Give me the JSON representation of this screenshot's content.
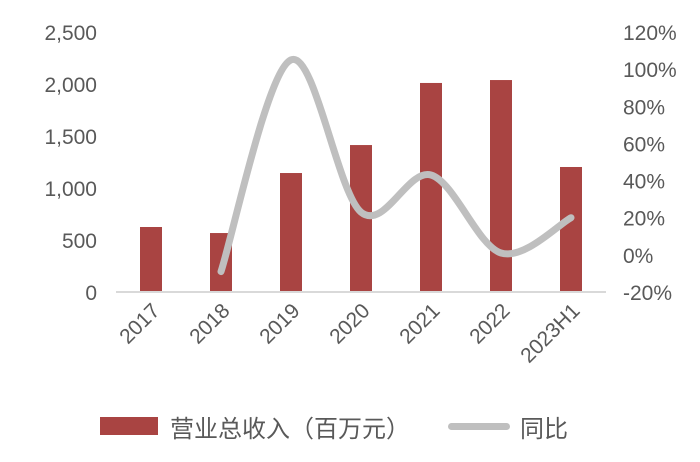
{
  "chart_data": {
    "type": "bar+line",
    "title": "",
    "categories": [
      "2017",
      "2018",
      "2019",
      "2020",
      "2021",
      "2022",
      "2023H1"
    ],
    "series": [
      {
        "name": "营业总收入（百万元）",
        "type": "bar",
        "axis": "left",
        "color": "#a94442",
        "values": [
          625,
          567,
          1144,
          1413,
          2010,
          2038,
          1202
        ]
      },
      {
        "name": "同比",
        "type": "line",
        "axis": "right",
        "color": "#bfbfbf",
        "smooth": true,
        "values": [
          null,
          -9,
          105,
          23,
          43,
          1,
          20
        ]
      }
    ],
    "left_axis": {
      "ylim": [
        0,
        2500
      ],
      "ticks": [
        "0",
        "500",
        "1,000",
        "1,500",
        "2,000",
        "2,500"
      ]
    },
    "right_axis": {
      "ylim": [
        -20,
        120
      ],
      "ticks": [
        "-20%",
        "0%",
        "20%",
        "40%",
        "60%",
        "80%",
        "100%",
        "120%"
      ]
    },
    "xlabel": "",
    "ylabel": "",
    "grid": false,
    "legend_position": "bottom"
  },
  "legend": {
    "bar_label": "营业总收入（百万元）",
    "line_label": "同比"
  }
}
